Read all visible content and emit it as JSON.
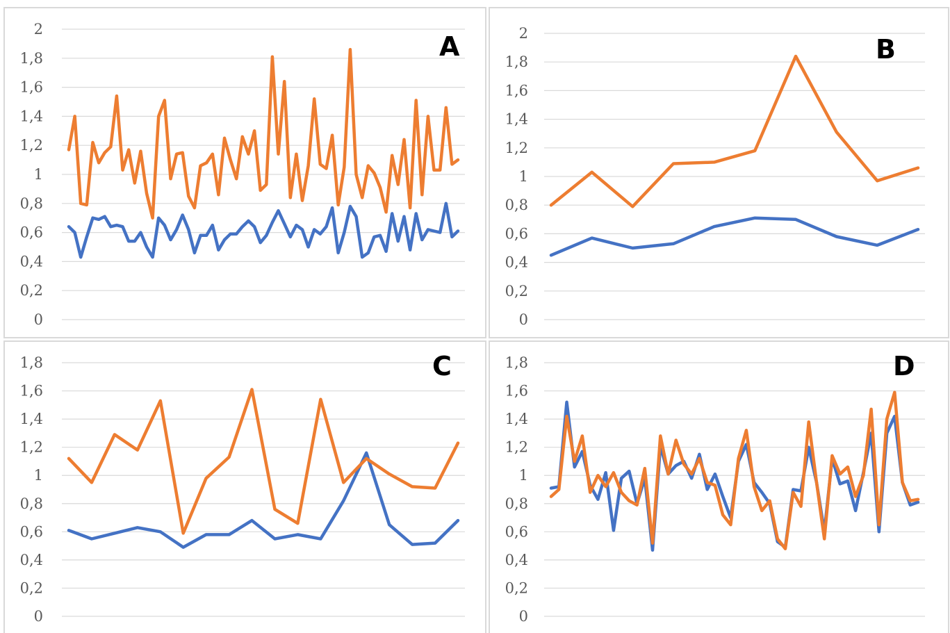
{
  "colors": {
    "series1": "#4472c4",
    "series2": "#ed7d31",
    "grid": "#d9d9d9",
    "tick": "#595959"
  },
  "chart_data": [
    {
      "type": "line",
      "panel_label": "A",
      "ylim": [
        0,
        2
      ],
      "y_ticks": [
        "0",
        "0,2",
        "0,4",
        "0,6",
        "0,8",
        "1",
        "1,2",
        "1,4",
        "1,6",
        "1,8",
        "2"
      ],
      "grid": true,
      "series": [
        {
          "values": [
            0.64,
            0.6,
            0.43,
            0.57,
            0.7,
            0.69,
            0.71,
            0.64,
            0.65,
            0.64,
            0.54,
            0.54,
            0.6,
            0.5,
            0.43,
            0.7,
            0.65,
            0.55,
            0.62,
            0.72,
            0.62,
            0.46,
            0.58,
            0.58,
            0.65,
            0.48,
            0.55,
            0.59,
            0.59,
            0.64,
            0.68,
            0.64,
            0.53,
            0.58,
            0.67,
            0.75,
            0.66,
            0.57,
            0.65,
            0.62,
            0.5,
            0.62,
            0.59,
            0.64,
            0.77,
            0.46,
            0.6,
            0.78,
            0.71,
            0.43,
            0.46,
            0.57,
            0.58,
            0.47,
            0.73,
            0.54,
            0.71,
            0.48,
            0.73,
            0.55,
            0.62,
            0.61,
            0.6,
            0.8,
            0.57,
            0.61
          ]
        },
        {
          "values": [
            1.17,
            1.4,
            0.8,
            0.79,
            1.22,
            1.08,
            1.15,
            1.19,
            1.54,
            1.03,
            1.17,
            0.94,
            1.16,
            0.87,
            0.7,
            1.4,
            1.51,
            0.97,
            1.14,
            1.15,
            0.85,
            0.77,
            1.06,
            1.08,
            1.14,
            0.86,
            1.25,
            1.1,
            0.97,
            1.26,
            1.14,
            1.3,
            0.89,
            0.93,
            1.81,
            1.14,
            1.64,
            0.84,
            1.14,
            0.82,
            1.06,
            1.52,
            1.07,
            1.04,
            1.27,
            0.79,
            1.05,
            1.86,
            1.0,
            0.84,
            1.06,
            1.01,
            0.91,
            0.74,
            1.13,
            0.93,
            1.24,
            0.77,
            1.51,
            0.86,
            1.4,
            1.03,
            1.03,
            1.46,
            1.07,
            1.1
          ]
        }
      ]
    },
    {
      "type": "line",
      "panel_label": "B",
      "ylim": [
        0,
        2
      ],
      "y_ticks": [
        "0",
        "0,2",
        "0,4",
        "0,6",
        "0,8",
        "1",
        "1,2",
        "1,4",
        "1,6",
        "1,8",
        "2"
      ],
      "grid": true,
      "series": [
        {
          "values": [
            0.45,
            0.57,
            0.5,
            0.53,
            0.65,
            0.71,
            0.7,
            0.58,
            0.52,
            0.63
          ]
        },
        {
          "values": [
            0.8,
            1.03,
            0.79,
            1.09,
            1.1,
            1.18,
            1.84,
            1.31,
            0.97,
            1.06
          ]
        }
      ]
    },
    {
      "type": "line",
      "panel_label": "C",
      "ylim": [
        0,
        1.8
      ],
      "y_ticks": [
        "0",
        "0,2",
        "0,4",
        "0,6",
        "0,8",
        "1",
        "1,2",
        "1,4",
        "1,6",
        "1,8"
      ],
      "grid": true,
      "series": [
        {
          "values": [
            0.61,
            0.55,
            0.59,
            0.63,
            0.6,
            0.49,
            0.58,
            0.58,
            0.68,
            0.55,
            0.58,
            0.55,
            0.82,
            1.16,
            0.65,
            0.51,
            0.52,
            0.68
          ]
        },
        {
          "values": [
            1.12,
            0.95,
            1.29,
            1.18,
            1.53,
            0.59,
            0.98,
            1.13,
            1.61,
            0.76,
            0.66,
            1.54,
            0.95,
            1.12,
            1.01,
            0.92,
            0.91,
            1.23
          ]
        }
      ]
    },
    {
      "type": "line",
      "panel_label": "D",
      "ylim": [
        0,
        1.8
      ],
      "y_ticks": [
        "0",
        "0,2",
        "0,4",
        "0,6",
        "0,8",
        "1",
        "1,2",
        "1,4",
        "1,6",
        "1,8"
      ],
      "grid": true,
      "series": [
        {
          "values": [
            0.91,
            0.92,
            1.52,
            1.06,
            1.17,
            0.93,
            0.83,
            1.02,
            0.61,
            0.98,
            1.03,
            0.8,
            0.98,
            0.47,
            1.21,
            1.01,
            1.07,
            1.1,
            0.98,
            1.15,
            0.9,
            1.01,
            0.85,
            0.7,
            1.1,
            1.22,
            0.95,
            0.88,
            0.8,
            0.53,
            0.49,
            0.9,
            0.89,
            1.2,
            0.95,
            0.6,
            1.12,
            0.94,
            0.96,
            0.75,
            1.02,
            1.3,
            0.6,
            1.3,
            1.42,
            0.95,
            0.79,
            0.81
          ]
        },
        {
          "values": [
            0.85,
            0.9,
            1.42,
            1.1,
            1.28,
            0.88,
            1.0,
            0.92,
            1.02,
            0.88,
            0.82,
            0.79,
            1.05,
            0.52,
            1.28,
            1.01,
            1.25,
            1.08,
            1.01,
            1.12,
            0.95,
            0.93,
            0.72,
            0.65,
            1.12,
            1.32,
            0.92,
            0.75,
            0.82,
            0.55,
            0.48,
            0.88,
            0.78,
            1.38,
            0.95,
            0.55,
            1.14,
            1.01,
            1.06,
            0.85,
            1.0,
            1.47,
            0.65,
            1.4,
            1.59,
            0.95,
            0.82,
            0.83
          ]
        }
      ]
    }
  ]
}
